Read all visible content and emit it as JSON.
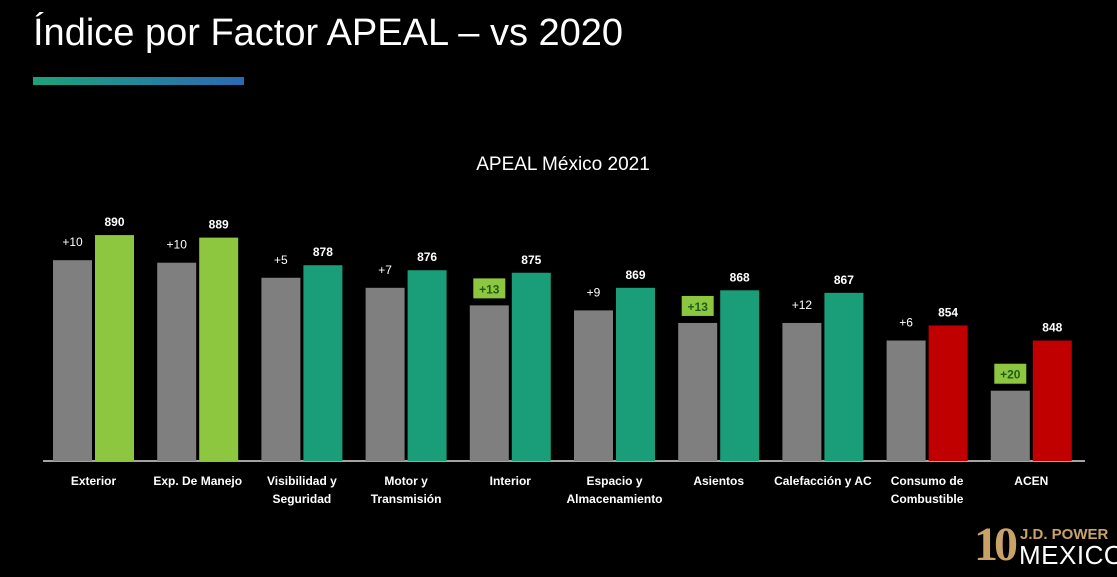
{
  "slide": {
    "title": "Índice por Factor APEAL – vs 2020",
    "title_bar_gradient": [
      "#1ba37a",
      "#2a6ab5"
    ]
  },
  "chart_data": {
    "type": "bar",
    "title": "APEAL México 2021",
    "categories": [
      "Exterior",
      "Exp. De Manejo",
      "Visibilidad y\nSeguridad",
      "Motor y\nTransmisión",
      "Interior",
      "Espacio y\nAlmacenamiento",
      "Asientos",
      "Calefacción y AC",
      "Consumo de\nCombustible",
      "ACEN"
    ],
    "series": [
      {
        "values": [
          880,
          879,
          873,
          869,
          862,
          860,
          855,
          855,
          848,
          828
        ],
        "color": "#7f7f7f"
      },
      {
        "values": [
          890,
          889,
          878,
          876,
          875,
          869,
          868,
          867,
          854,
          848
        ],
        "colors": [
          "#8dc63f",
          "#8dc63f",
          "#1a9e7a",
          "#1a9e7a",
          "#1a9e7a",
          "#1a9e7a",
          "#1a9e7a",
          "#1a9e7a",
          "#c00000",
          "#c00000"
        ]
      }
    ],
    "change_labels": [
      "+10",
      "+10",
      "+5",
      "+7",
      "+13",
      "+9",
      "+13",
      "+12",
      "+6",
      "+20"
    ],
    "highlighted_changes": [
      false,
      false,
      false,
      false,
      true,
      false,
      true,
      false,
      false,
      true
    ],
    "highlight_color": "#8dc63f",
    "highlight_text_color": "#1f5e1a",
    "value_labels": [
      "890",
      "889",
      "878",
      "876",
      "875",
      "869",
      "868",
      "867",
      "854",
      "848"
    ],
    "ylim": [
      800,
      900
    ],
    "grid": false,
    "legend": "none"
  },
  "logo": {
    "number": "10",
    "line1": "J.D. POWER",
    "line2": "MEXICO",
    "gold_color": "#c9a268"
  }
}
